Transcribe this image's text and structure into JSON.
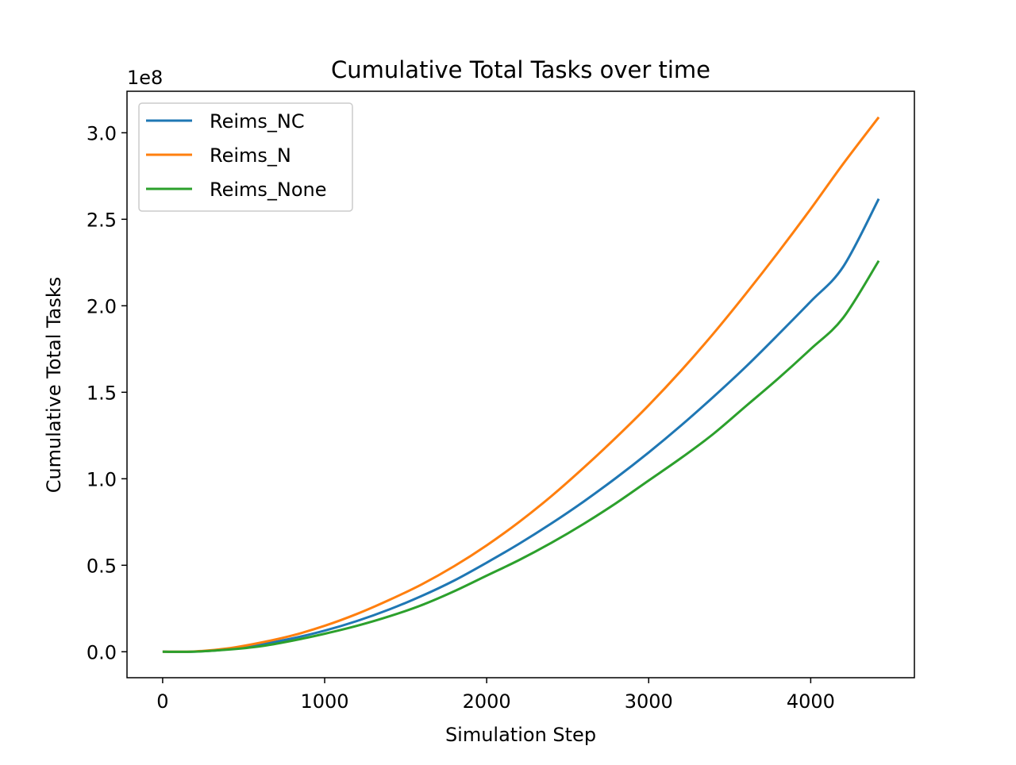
{
  "chart_data": {
    "type": "line",
    "title": "Cumulative Total Tasks over time",
    "xlabel": "Simulation Step",
    "ylabel": "Cumulative Total Tasks",
    "y_offset_label": "1e8",
    "y_scale_factor": 100000000,
    "xlim": [
      -220,
      4640
    ],
    "ylim": [
      -0.15,
      3.24
    ],
    "x_ticks": [
      0,
      1000,
      2000,
      3000,
      4000
    ],
    "x_tick_labels": [
      "0",
      "1000",
      "2000",
      "3000",
      "4000"
    ],
    "y_ticks": [
      0.0,
      0.5,
      1.0,
      1.5,
      2.0,
      2.5,
      3.0
    ],
    "y_tick_labels": [
      "0.0",
      "0.5",
      "1.0",
      "1.5",
      "2.0",
      "2.5",
      "3.0"
    ],
    "grid": false,
    "legend_position": "top-left",
    "x": [
      0,
      200,
      400,
      600,
      800,
      1000,
      1200,
      1400,
      1600,
      1800,
      2000,
      2200,
      2400,
      2600,
      2800,
      3000,
      3200,
      3400,
      3600,
      3800,
      4000,
      4200,
      4420
    ],
    "series": [
      {
        "name": "Reims_NC",
        "color": "#1f77b4",
        "values": [
          0.0,
          0.001,
          0.014,
          0.041,
          0.077,
          0.122,
          0.178,
          0.245,
          0.323,
          0.412,
          0.515,
          0.624,
          0.742,
          0.869,
          1.006,
          1.152,
          1.308,
          1.474,
          1.648,
          1.834,
          2.025,
          2.225,
          2.618
        ]
      },
      {
        "name": "Reims_N",
        "color": "#ff7f0e",
        "values": [
          0.0,
          0.002,
          0.019,
          0.052,
          0.094,
          0.15,
          0.219,
          0.3,
          0.39,
          0.495,
          0.615,
          0.75,
          0.9,
          1.065,
          1.24,
          1.425,
          1.625,
          1.84,
          2.07,
          2.31,
          2.56,
          2.82,
          3.09
        ]
      },
      {
        "name": "Reims_None",
        "color": "#2ca02c",
        "values": [
          0.0,
          0.001,
          0.012,
          0.031,
          0.064,
          0.104,
          0.15,
          0.205,
          0.27,
          0.35,
          0.44,
          0.53,
          0.63,
          0.74,
          0.86,
          0.99,
          1.12,
          1.26,
          1.42,
          1.58,
          1.75,
          1.93,
          2.26
        ]
      }
    ]
  }
}
